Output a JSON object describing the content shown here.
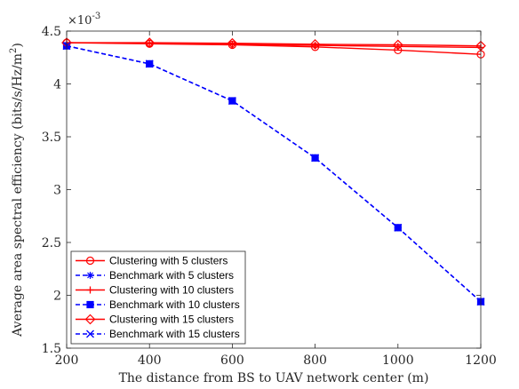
{
  "chart_data": {
    "type": "line",
    "xlabel": "The distance from BS to UAV network center (m)",
    "ylabel": "Average area spectral efficiency (bits/s/Hz/m",
    "ylabel_sup": "2",
    "ylabel_close": ")",
    "y_multiplier_base": "×10",
    "y_multiplier_exp": "-3",
    "x": [
      200,
      400,
      600,
      800,
      1000,
      1200
    ],
    "xlim": [
      200,
      1200
    ],
    "ylim": [
      1.5,
      4.5
    ],
    "xticks": [
      200,
      400,
      600,
      800,
      1000,
      1200
    ],
    "yticks": [
      1.5,
      2,
      2.5,
      3,
      3.5,
      4,
      4.5
    ],
    "ytick_labels": [
      "1.5",
      "2",
      "2.5",
      "3",
      "3.5",
      "4",
      "4.5"
    ],
    "grid": false,
    "legend_position": "bottom-left",
    "series": [
      {
        "name": "Clustering with 5 clusters",
        "values": [
          4.39,
          4.38,
          4.37,
          4.35,
          4.32,
          4.28
        ],
        "color": "#ff0000",
        "dash": "solid",
        "marker": "circle"
      },
      {
        "name": "Benchmark with 5 clusters",
        "values": [
          4.36,
          4.19,
          3.84,
          3.3,
          2.64,
          1.94
        ],
        "color": "#0000ff",
        "dash": "dashed",
        "marker": "asterisk"
      },
      {
        "name": "Clustering with 10 clusters",
        "values": [
          4.39,
          4.385,
          4.375,
          4.365,
          4.355,
          4.345
        ],
        "color": "#ff0000",
        "dash": "solid",
        "marker": "plus"
      },
      {
        "name": "Benchmark with 10 clusters",
        "values": [
          4.36,
          4.19,
          3.84,
          3.3,
          2.64,
          1.94
        ],
        "color": "#0000ff",
        "dash": "dashed",
        "marker": "square"
      },
      {
        "name": "Clustering with 15 clusters",
        "values": [
          4.39,
          4.39,
          4.385,
          4.375,
          4.37,
          4.36
        ],
        "color": "#ff0000",
        "dash": "solid",
        "marker": "diamond"
      },
      {
        "name": "Benchmark with 15 clusters",
        "values": [
          4.36,
          4.19,
          3.84,
          3.3,
          2.64,
          1.94
        ],
        "color": "#0000ff",
        "dash": "dashed",
        "marker": "cross"
      }
    ]
  }
}
